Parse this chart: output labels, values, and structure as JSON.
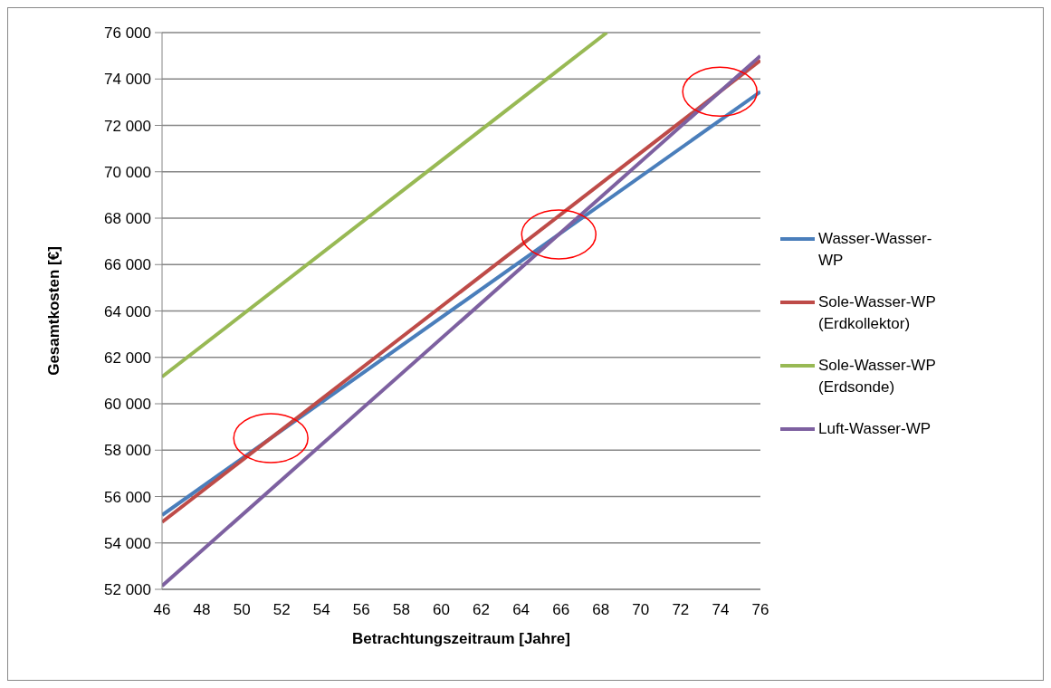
{
  "chart_data": {
    "type": "line",
    "xlabel": "Betrachtungszeitraum [Jahre]",
    "ylabel": "Gesamtkosten [€]",
    "xlim": [
      46,
      76
    ],
    "xticks": [
      46,
      48,
      50,
      52,
      54,
      56,
      58,
      60,
      62,
      64,
      66,
      68,
      70,
      72,
      74,
      76
    ],
    "ylim": [
      52000,
      76000
    ],
    "yticks": [
      {
        "value": 52000,
        "label": "52 000"
      },
      {
        "value": 54000,
        "label": "54 000"
      },
      {
        "value": 56000,
        "label": "56 000"
      },
      {
        "value": 58000,
        "label": "58 000"
      },
      {
        "value": 60000,
        "label": "60 000"
      },
      {
        "value": 62000,
        "label": "62 000"
      },
      {
        "value": 64000,
        "label": "64 000"
      },
      {
        "value": 66000,
        "label": "66 000"
      },
      {
        "value": 68000,
        "label": "68 000"
      },
      {
        "value": 70000,
        "label": "70 000"
      },
      {
        "value": 72000,
        "label": "72 000"
      },
      {
        "value": 74000,
        "label": "74 000"
      },
      {
        "value": 76000,
        "label": "76 000"
      }
    ],
    "grid": "y",
    "legend": "right",
    "marker": "none",
    "line_style": "solid",
    "series": [
      {
        "name": "Wasser-Wasser-WP",
        "color": "#4a7ebb",
        "x": [
          46,
          76
        ],
        "values": [
          55200,
          73450
        ]
      },
      {
        "name": "Sole-Wasser-WP (Erdkollektor)",
        "color": "#be4b48",
        "x": [
          46,
          76
        ],
        "values": [
          54900,
          74800
        ]
      },
      {
        "name": "Sole-Wasser-WP (Erdsonde)",
        "color": "#98b954",
        "x": [
          46,
          68.3
        ],
        "values": [
          61160,
          76000
        ]
      },
      {
        "name": "Luft-Wasser-WP",
        "color": "#7d60a0",
        "x": [
          46,
          76
        ],
        "values": [
          52150,
          75000
        ]
      }
    ]
  }
}
